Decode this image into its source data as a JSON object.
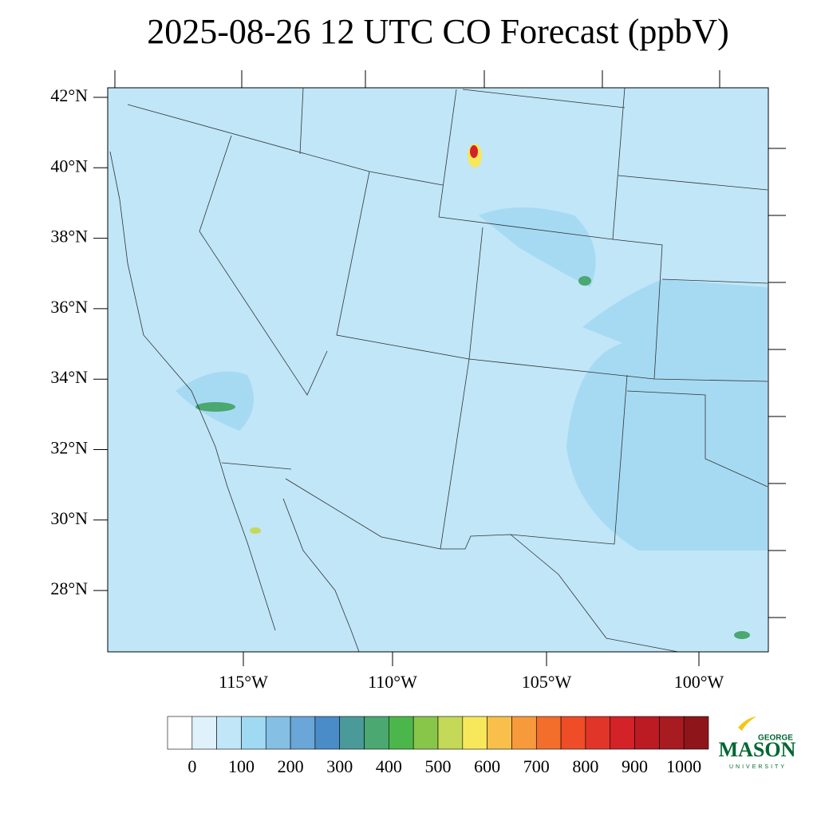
{
  "title": "2025-08-26 12 UTC CO Forecast (ppbV)",
  "lat_labels": [
    "42°N",
    "40°N",
    "38°N",
    "36°N",
    "34°N",
    "32°N",
    "30°N",
    "28°N"
  ],
  "lon_labels": [
    "115°W",
    "110°W",
    "105°W",
    "100°W"
  ],
  "colorbar": {
    "labels": [
      0,
      100,
      200,
      300,
      400,
      500,
      600,
      700,
      800,
      900,
      1000
    ],
    "colors": [
      "#ffffff",
      "#dff1fa",
      "#c0e6f8",
      "#9fd9f2",
      "#85bfe4",
      "#6aa6d8",
      "#4a8cc8",
      "#4a9a9a",
      "#4aa870",
      "#4bb74a",
      "#88c64a",
      "#c4d957",
      "#f7e75b",
      "#f8c04a",
      "#f79a3c",
      "#f36d2b",
      "#ef4c28",
      "#e03528",
      "#d32228",
      "#bd1b24",
      "#a81b21",
      "#8e161b"
    ]
  },
  "logo": {
    "top": "GEORGE",
    "name": "MASON",
    "bottom": "UNIVERSITY"
  }
}
